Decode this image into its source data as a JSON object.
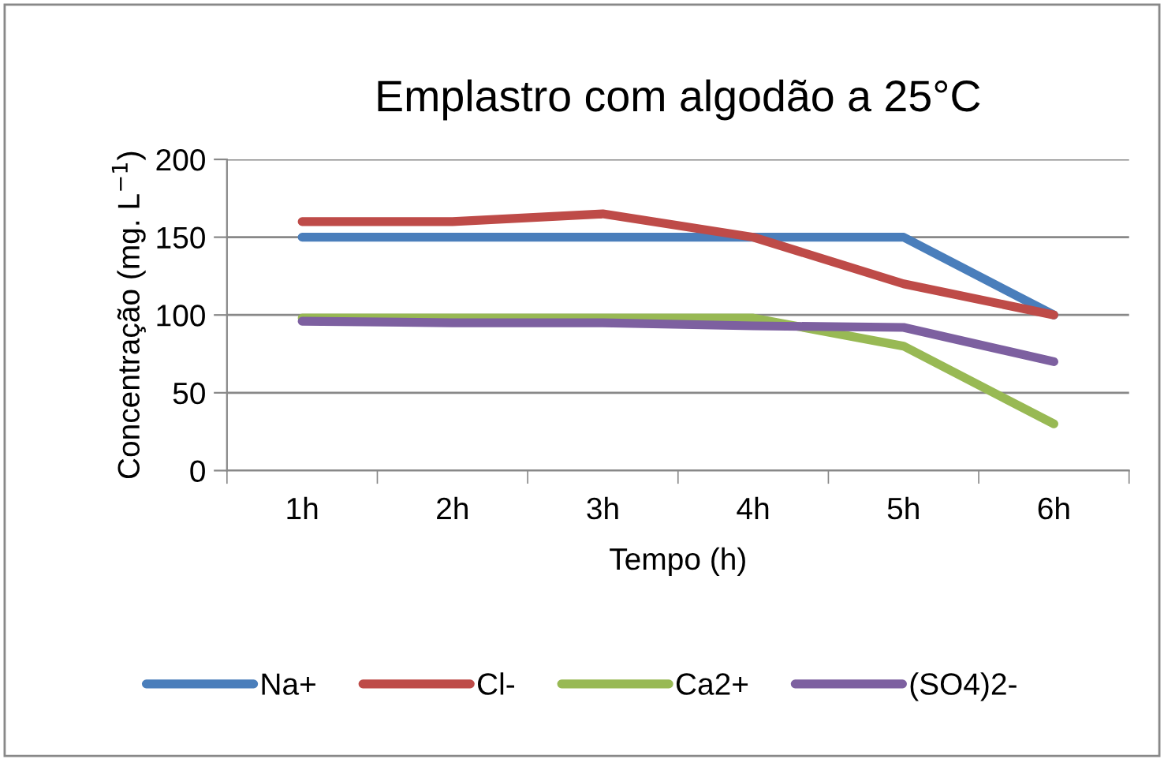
{
  "chart_data": {
    "type": "line",
    "title": "Emplastro com algodão a 25°C",
    "xlabel": "Tempo (h)",
    "ylabel": "Concentração (mg. L$^{−1}$)",
    "categories": [
      "1h",
      "2h",
      "3h",
      "4h",
      "5h",
      "6h"
    ],
    "series": [
      {
        "name": "Na+",
        "color": "#4a7ebb",
        "values": [
          150,
          150,
          150,
          150,
          150,
          100
        ]
      },
      {
        "name": "Cl-",
        "color": "#be4b48",
        "values": [
          160,
          160,
          165,
          150,
          120,
          100
        ]
      },
      {
        "name": "Ca2+",
        "color": "#98b954",
        "values": [
          98,
          98,
          98,
          98,
          80,
          30
        ]
      },
      {
        "name": "(SO4)2-",
        "color": "#7d60a0",
        "values": [
          96,
          95,
          95,
          93,
          92,
          70
        ]
      }
    ],
    "ylim": [
      0,
      200
    ],
    "yticks": [
      0,
      50,
      100,
      150,
      200
    ],
    "grid": "y",
    "legend": "bottom",
    "marker": "none",
    "line_style": "solid"
  }
}
